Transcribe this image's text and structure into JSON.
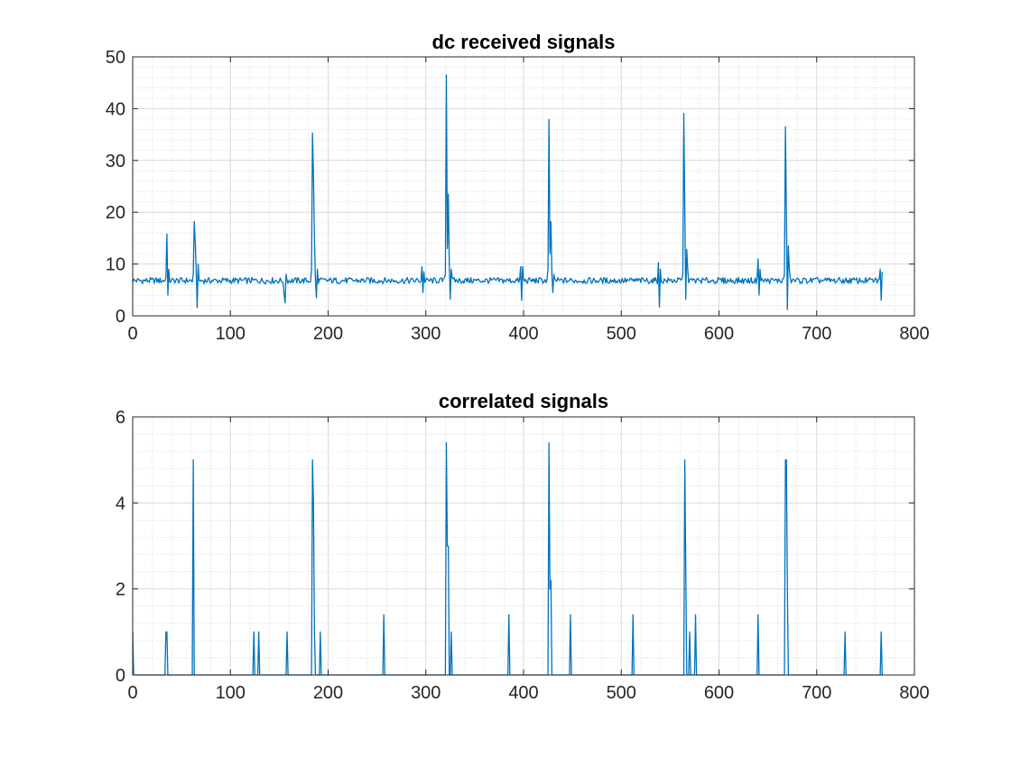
{
  "colors": {
    "series": "#0072bd",
    "axis": "#262626"
  },
  "chart_data": [
    {
      "type": "line",
      "title": "dc received signals",
      "xlabel": "",
      "ylabel": "",
      "xlim": [
        0,
        800
      ],
      "ylim": [
        0,
        50
      ],
      "xticks": [
        0,
        100,
        200,
        300,
        400,
        500,
        600,
        700,
        800
      ],
      "yticks": [
        0,
        10,
        20,
        30,
        40,
        50
      ],
      "grid": "on",
      "minor_grid": "on",
      "baseline": 6.8,
      "n_samples": 768,
      "series": [
        {
          "spikes": [
            {
              "x": 34,
              "values": [
                7.5,
                15.8,
                4.0,
                9.0
              ]
            },
            {
              "x": 62,
              "values": [
                8.0,
                18.2,
                14.5,
                9.0,
                1.6,
                10.0
              ]
            },
            {
              "x": 155,
              "values": [
                4.0,
                2.5,
                8.0
              ]
            },
            {
              "x": 183,
              "values": [
                9.0,
                35.3,
                27.0,
                15.0,
                7.0,
                3.5,
                9.0
              ]
            },
            {
              "x": 296,
              "values": [
                9.5,
                4.5,
                8.5
              ]
            },
            {
              "x": 320,
              "values": [
                8.0,
                46.5,
                13.0,
                23.5,
                10.0,
                3.2,
                9.0
              ]
            },
            {
              "x": 397,
              "values": [
                9.5,
                3.0,
                9.5
              ]
            },
            {
              "x": 425,
              "values": [
                9.0,
                37.9,
                12.0,
                18.2,
                8.0,
                4.5,
                8.0
              ]
            },
            {
              "x": 538,
              "values": [
                10.3,
                1.7,
                9.0
              ]
            },
            {
              "x": 563,
              "values": [
                8.0,
                39.1,
                21.0,
                3.2,
                12.8,
                9.0
              ]
            },
            {
              "x": 640,
              "values": [
                11.0,
                4.0,
                9.0
              ]
            },
            {
              "x": 667,
              "values": [
                8.0,
                36.5,
                20.0,
                1.2,
                13.5,
                9.0
              ]
            },
            {
              "x": 765,
              "values": [
                9.0,
                3.0,
                8.5,
                7.0
              ]
            }
          ]
        }
      ]
    },
    {
      "type": "line",
      "title": "correlated signals",
      "xlabel": "",
      "ylabel": "",
      "xlim": [
        0,
        800
      ],
      "ylim": [
        0,
        6
      ],
      "xticks": [
        0,
        100,
        200,
        300,
        400,
        500,
        600,
        700,
        800
      ],
      "yticks": [
        0,
        2,
        4,
        6
      ],
      "grid": "on",
      "minor_grid": "on",
      "baseline": 0,
      "n_samples": 768,
      "series": [
        {
          "spikes": [
            {
              "x": 0,
              "values": [
                1.0
              ]
            },
            {
              "x": 34,
              "values": [
                1.0,
                1.0
              ]
            },
            {
              "x": 62,
              "values": [
                5.0
              ]
            },
            {
              "x": 124,
              "values": [
                1.0
              ]
            },
            {
              "x": 129,
              "values": [
                1.0
              ]
            },
            {
              "x": 158,
              "values": [
                1.0
              ]
            },
            {
              "x": 184,
              "values": [
                5.0,
                4.0,
                1.0
              ]
            },
            {
              "x": 192,
              "values": [
                1.0
              ]
            },
            {
              "x": 257,
              "values": [
                1.4
              ]
            },
            {
              "x": 321,
              "values": [
                5.4,
                3.0,
                3.0
              ]
            },
            {
              "x": 326,
              "values": [
                1.0
              ]
            },
            {
              "x": 385,
              "values": [
                1.4
              ]
            },
            {
              "x": 426,
              "values": [
                5.4,
                2.0,
                2.2
              ]
            },
            {
              "x": 448,
              "values": [
                1.4
              ]
            },
            {
              "x": 512,
              "values": [
                1.4
              ]
            },
            {
              "x": 565,
              "values": [
                5.0,
                2.5
              ]
            },
            {
              "x": 570,
              "values": [
                1.0
              ]
            },
            {
              "x": 576,
              "values": [
                1.4
              ]
            },
            {
              "x": 640,
              "values": [
                1.4
              ]
            },
            {
              "x": 668,
              "values": [
                5.0,
                5.0,
                2.0
              ]
            },
            {
              "x": 729,
              "values": [
                1.0
              ]
            },
            {
              "x": 766,
              "values": [
                1.0
              ]
            }
          ]
        }
      ]
    }
  ]
}
